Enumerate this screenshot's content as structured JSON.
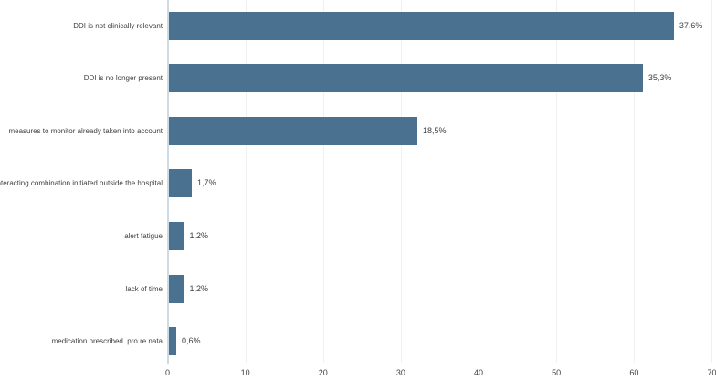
{
  "chart_data": {
    "type": "bar",
    "orientation": "horizontal",
    "title": "",
    "xlabel": "",
    "ylabel": "",
    "categories": [
      "DDI is not clinically relevant",
      "DDI is no longer present",
      "measures to monitor already taken into account",
      "interacting combination initiated outside the hospital",
      "alert fatigue",
      "lack of time",
      "medication prescribed  pro re nata"
    ],
    "values": [
      65,
      61,
      32,
      3,
      2,
      2,
      1
    ],
    "value_labels": [
      "37,6%",
      "35,3%",
      "18,5%",
      "1,7%",
      "1,2%",
      "1,2%",
      "0,6%"
    ],
    "x_ticks": [
      0,
      10,
      20,
      30,
      40,
      50,
      60,
      70
    ],
    "xlim": [
      0,
      70
    ],
    "grid": "vertical-faint",
    "legend": "none"
  },
  "colors": {
    "bar": "#4a7190",
    "gridline": "#f1f1f1",
    "axis_line": "#ccdbe3",
    "text": "#3f3f3f",
    "background": "#ffffff"
  }
}
